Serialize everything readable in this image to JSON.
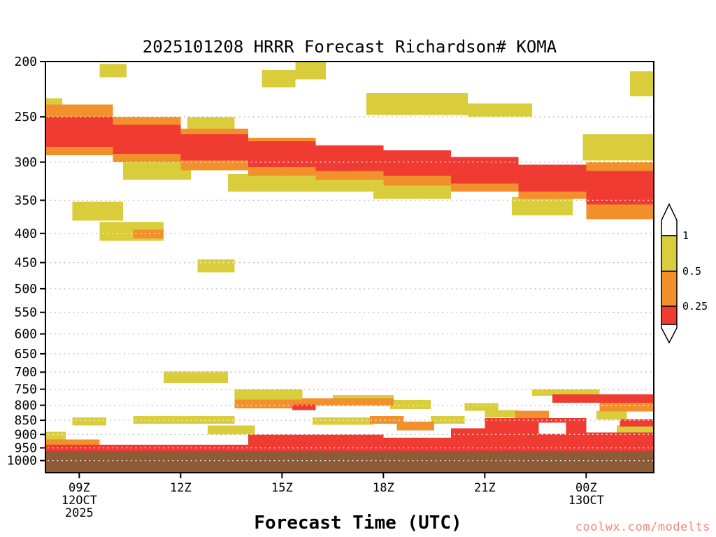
{
  "title": "2025101208 HRRR Forecast Richardson# KOMA",
  "xlabel": "Forecast Time (UTC)",
  "watermark": {
    "text": "coolwx.com/modelts",
    "color": "#f08878"
  },
  "colorbar": {
    "labels": [
      "1",
      "0.5",
      "0.25"
    ],
    "segments": [
      {
        "name": "above-1",
        "color": "#ffffff"
      },
      {
        "name": "0.5-to-1",
        "color": "#d9cd3c"
      },
      {
        "name": "0.25-to-0.5",
        "color": "#f2902c"
      },
      {
        "name": "below-0.25",
        "color": "#f03b33"
      }
    ]
  },
  "axes": {
    "y_ticks": [
      200,
      250,
      300,
      350,
      400,
      450,
      500,
      550,
      600,
      650,
      700,
      750,
      800,
      850,
      900,
      950,
      1000
    ],
    "x_ticks": [
      {
        "t": 1,
        "label": "09Z",
        "sub": [
          "12OCT",
          "2025"
        ]
      },
      {
        "t": 4,
        "label": "12Z",
        "sub": []
      },
      {
        "t": 7,
        "label": "15Z",
        "sub": []
      },
      {
        "t": 10,
        "label": "18Z",
        "sub": []
      },
      {
        "t": 13,
        "label": "21Z",
        "sub": []
      },
      {
        "t": 16,
        "label": "00Z",
        "sub": [
          "13OCT"
        ]
      }
    ]
  },
  "chart_data": {
    "type": "heatmap",
    "title": "2025101208 HRRR Forecast Richardson# KOMA",
    "x": {
      "t_origin": "left edge = 08Z 12 Oct 2025",
      "t_end_hours": 18,
      "tick_labels": [
        "09Z",
        "12Z",
        "15Z",
        "18Z",
        "21Z",
        "00Z"
      ]
    },
    "y": {
      "scale": "log",
      "top": 200,
      "bottom": 1050,
      "ticks": [
        200,
        250,
        300,
        350,
        400,
        450,
        500,
        550,
        600,
        650,
        700,
        750,
        800,
        850,
        900,
        950,
        1000
      ]
    },
    "value_bins": {
      "y": "0.5-1",
      "o": "0.25-0.5",
      "r": "below 0.25",
      "b": "surface/underground",
      "w": "above 1"
    },
    "palette": {
      "y": "#d9cd3c",
      "o": "#f2902c",
      "r": "#f03b33",
      "b": "#8e5b38",
      "w": "#ffffff"
    },
    "cells": [
      [
        0,
        0.5,
        232,
        258,
        "y"
      ],
      [
        1.6,
        2.4,
        202,
        213,
        "y"
      ],
      [
        0.8,
        2.3,
        352,
        380,
        "y"
      ],
      [
        1.6,
        3.5,
        382,
        412,
        "y"
      ],
      [
        4.2,
        5.6,
        250,
        270,
        "y"
      ],
      [
        4.5,
        5.6,
        444,
        468,
        "y"
      ],
      [
        6.4,
        7.4,
        207,
        222,
        "y"
      ],
      [
        7.4,
        8.3,
        200,
        215,
        "y"
      ],
      [
        9.5,
        12.5,
        227,
        248,
        "y"
      ],
      [
        12.5,
        14.4,
        237,
        250,
        "y"
      ],
      [
        17.3,
        18,
        208,
        230,
        "y"
      ],
      [
        15.9,
        18,
        268,
        298,
        "y"
      ],
      [
        2.3,
        4.3,
        298,
        322,
        "y"
      ],
      [
        5.4,
        9.7,
        315,
        338,
        "y"
      ],
      [
        9.7,
        12,
        322,
        348,
        "y"
      ],
      [
        13.8,
        15.6,
        345,
        372,
        "y"
      ],
      [
        0,
        0.6,
        890,
        925,
        "y"
      ],
      [
        0.8,
        1.8,
        840,
        868,
        "y"
      ],
      [
        2.6,
        5.6,
        836,
        862,
        "y"
      ],
      [
        3.5,
        5.4,
        698,
        732,
        "y"
      ],
      [
        5.6,
        7.6,
        750,
        782,
        "y"
      ],
      [
        7.9,
        9.7,
        840,
        865,
        "y"
      ],
      [
        4.8,
        6.2,
        868,
        900,
        "y"
      ],
      [
        10.2,
        11.4,
        783,
        812,
        "y"
      ],
      [
        11.4,
        12.4,
        836,
        862,
        "y"
      ],
      [
        12.4,
        13.4,
        793,
        818,
        "y"
      ],
      [
        13,
        14,
        816,
        840,
        "y"
      ],
      [
        14.4,
        16.4,
        750,
        770,
        "y"
      ],
      [
        16.3,
        17.2,
        818,
        848,
        "y"
      ],
      [
        16.9,
        18,
        868,
        895,
        "y"
      ],
      [
        8.5,
        10.3,
        768,
        782,
        "y"
      ],
      [
        0,
        2,
        238,
        292,
        "o"
      ],
      [
        2,
        4,
        250,
        300,
        "o"
      ],
      [
        4,
        6,
        262,
        310,
        "o"
      ],
      [
        6,
        8,
        272,
        317,
        "o"
      ],
      [
        8,
        10,
        280,
        322,
        "o"
      ],
      [
        10,
        12,
        288,
        330,
        "o"
      ],
      [
        12,
        14,
        298,
        338,
        "o"
      ],
      [
        14,
        16,
        308,
        348,
        "o"
      ],
      [
        16,
        18,
        300,
        378,
        "o"
      ],
      [
        2.6,
        3.5,
        394,
        408,
        "o"
      ],
      [
        0,
        1.6,
        918,
        948,
        "o"
      ],
      [
        5.6,
        7.6,
        782,
        810,
        "o"
      ],
      [
        7.6,
        10.3,
        778,
        802,
        "o"
      ],
      [
        9.6,
        10.6,
        836,
        862,
        "o"
      ],
      [
        10.4,
        11.5,
        855,
        885,
        "o"
      ],
      [
        16.4,
        18,
        790,
        820,
        "o"
      ],
      [
        13.9,
        14.9,
        818,
        846,
        "o"
      ],
      [
        0,
        2,
        250,
        282,
        "r"
      ],
      [
        2,
        4,
        258,
        290,
        "r"
      ],
      [
        4,
        6,
        268,
        298,
        "r"
      ],
      [
        6,
        8,
        276,
        306,
        "r"
      ],
      [
        8,
        10,
        281,
        311,
        "r"
      ],
      [
        10,
        12,
        286,
        317,
        "r"
      ],
      [
        12,
        14,
        294,
        327,
        "r"
      ],
      [
        14,
        16,
        303,
        338,
        "r"
      ],
      [
        16,
        18,
        311,
        356,
        "r"
      ],
      [
        0,
        18,
        938,
        965,
        "r"
      ],
      [
        6,
        10,
        900,
        940,
        "r"
      ],
      [
        7.3,
        8,
        798,
        816,
        "r"
      ],
      [
        10,
        13,
        912,
        965,
        "r"
      ],
      [
        12,
        13.3,
        878,
        915,
        "r"
      ],
      [
        13,
        16,
        843,
        962,
        "r"
      ],
      [
        15,
        18,
        766,
        792,
        "r"
      ],
      [
        17,
        18,
        846,
        872,
        "r"
      ],
      [
        16,
        18,
        893,
        965,
        "r"
      ],
      [
        14.6,
        15.4,
        858,
        898,
        "w"
      ],
      [
        0,
        18,
        962,
        1050,
        "b"
      ]
    ]
  }
}
